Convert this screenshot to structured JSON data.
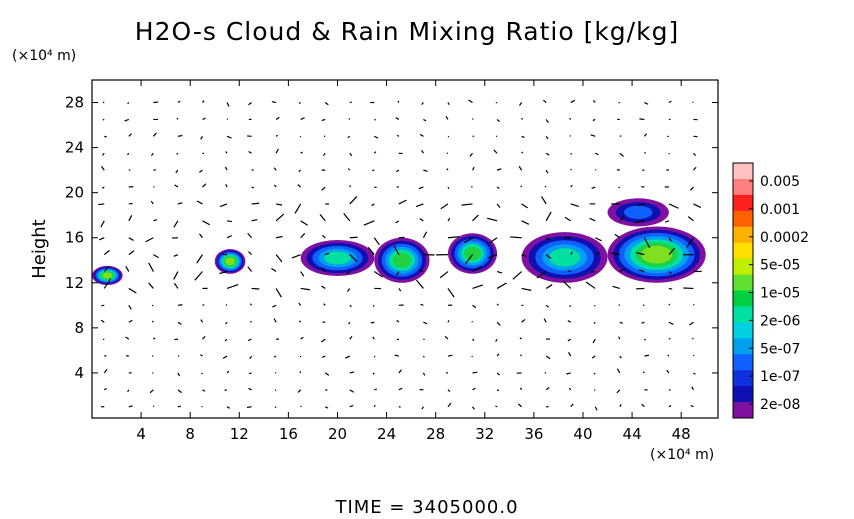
{
  "chart_data": {
    "type": "heatmap",
    "title": "H2O-s Cloud & Rain Mixing Ratio [kg/kg]",
    "ylabel": "Height",
    "x_unit": "(×10⁴ m)",
    "y_unit": "(×10⁴ m)",
    "xlim": [
      0,
      51
    ],
    "ylim": [
      0,
      30
    ],
    "x_ticks": [
      "4",
      "8",
      "12",
      "16",
      "20",
      "24",
      "28",
      "32",
      "36",
      "40",
      "44",
      "48"
    ],
    "y_ticks": [
      "4",
      "8",
      "12",
      "16",
      "20",
      "24",
      "28"
    ],
    "colorbar": {
      "labels": [
        "0.005",
        "0.001",
        "0.0002",
        "5e-05",
        "1e-05",
        "2e-06",
        "5e-07",
        "1e-07",
        "2e-08"
      ],
      "colors": [
        "#ffc0c0",
        "#ff8080",
        "#ff2020",
        "#ff6000",
        "#ffb000",
        "#ffe000",
        "#c0f000",
        "#60e030",
        "#00d040",
        "#00e0a0",
        "#00d0e0",
        "#00a0f0",
        "#1060ff",
        "#1030e0",
        "#1010b0",
        "#8010a0"
      ]
    },
    "time_label": "TIME = 3405000.0",
    "cloud_regions": [
      {
        "x": [
          0,
          2.5
        ],
        "y": [
          11.8,
          13.5
        ],
        "level": "5e-05"
      },
      {
        "x": [
          10,
          12.5
        ],
        "y": [
          12.8,
          15
        ],
        "level": "5e-05"
      },
      {
        "x": [
          17,
          23
        ],
        "y": [
          12.6,
          15.8
        ],
        "level": "2e-06"
      },
      {
        "x": [
          23,
          27.5
        ],
        "y": [
          12,
          16
        ],
        "level": "1e-05"
      },
      {
        "x": [
          29,
          33
        ],
        "y": [
          12.8,
          16.4
        ],
        "level": "1e-05"
      },
      {
        "x": [
          35,
          42
        ],
        "y": [
          12,
          16.5
        ],
        "level": "5e-06"
      },
      {
        "x": [
          42,
          50
        ],
        "y": [
          12,
          17
        ],
        "level": "5e-05"
      },
      {
        "x": [
          42,
          47
        ],
        "y": [
          17,
          19.5
        ],
        "level": "1e-07"
      }
    ]
  }
}
